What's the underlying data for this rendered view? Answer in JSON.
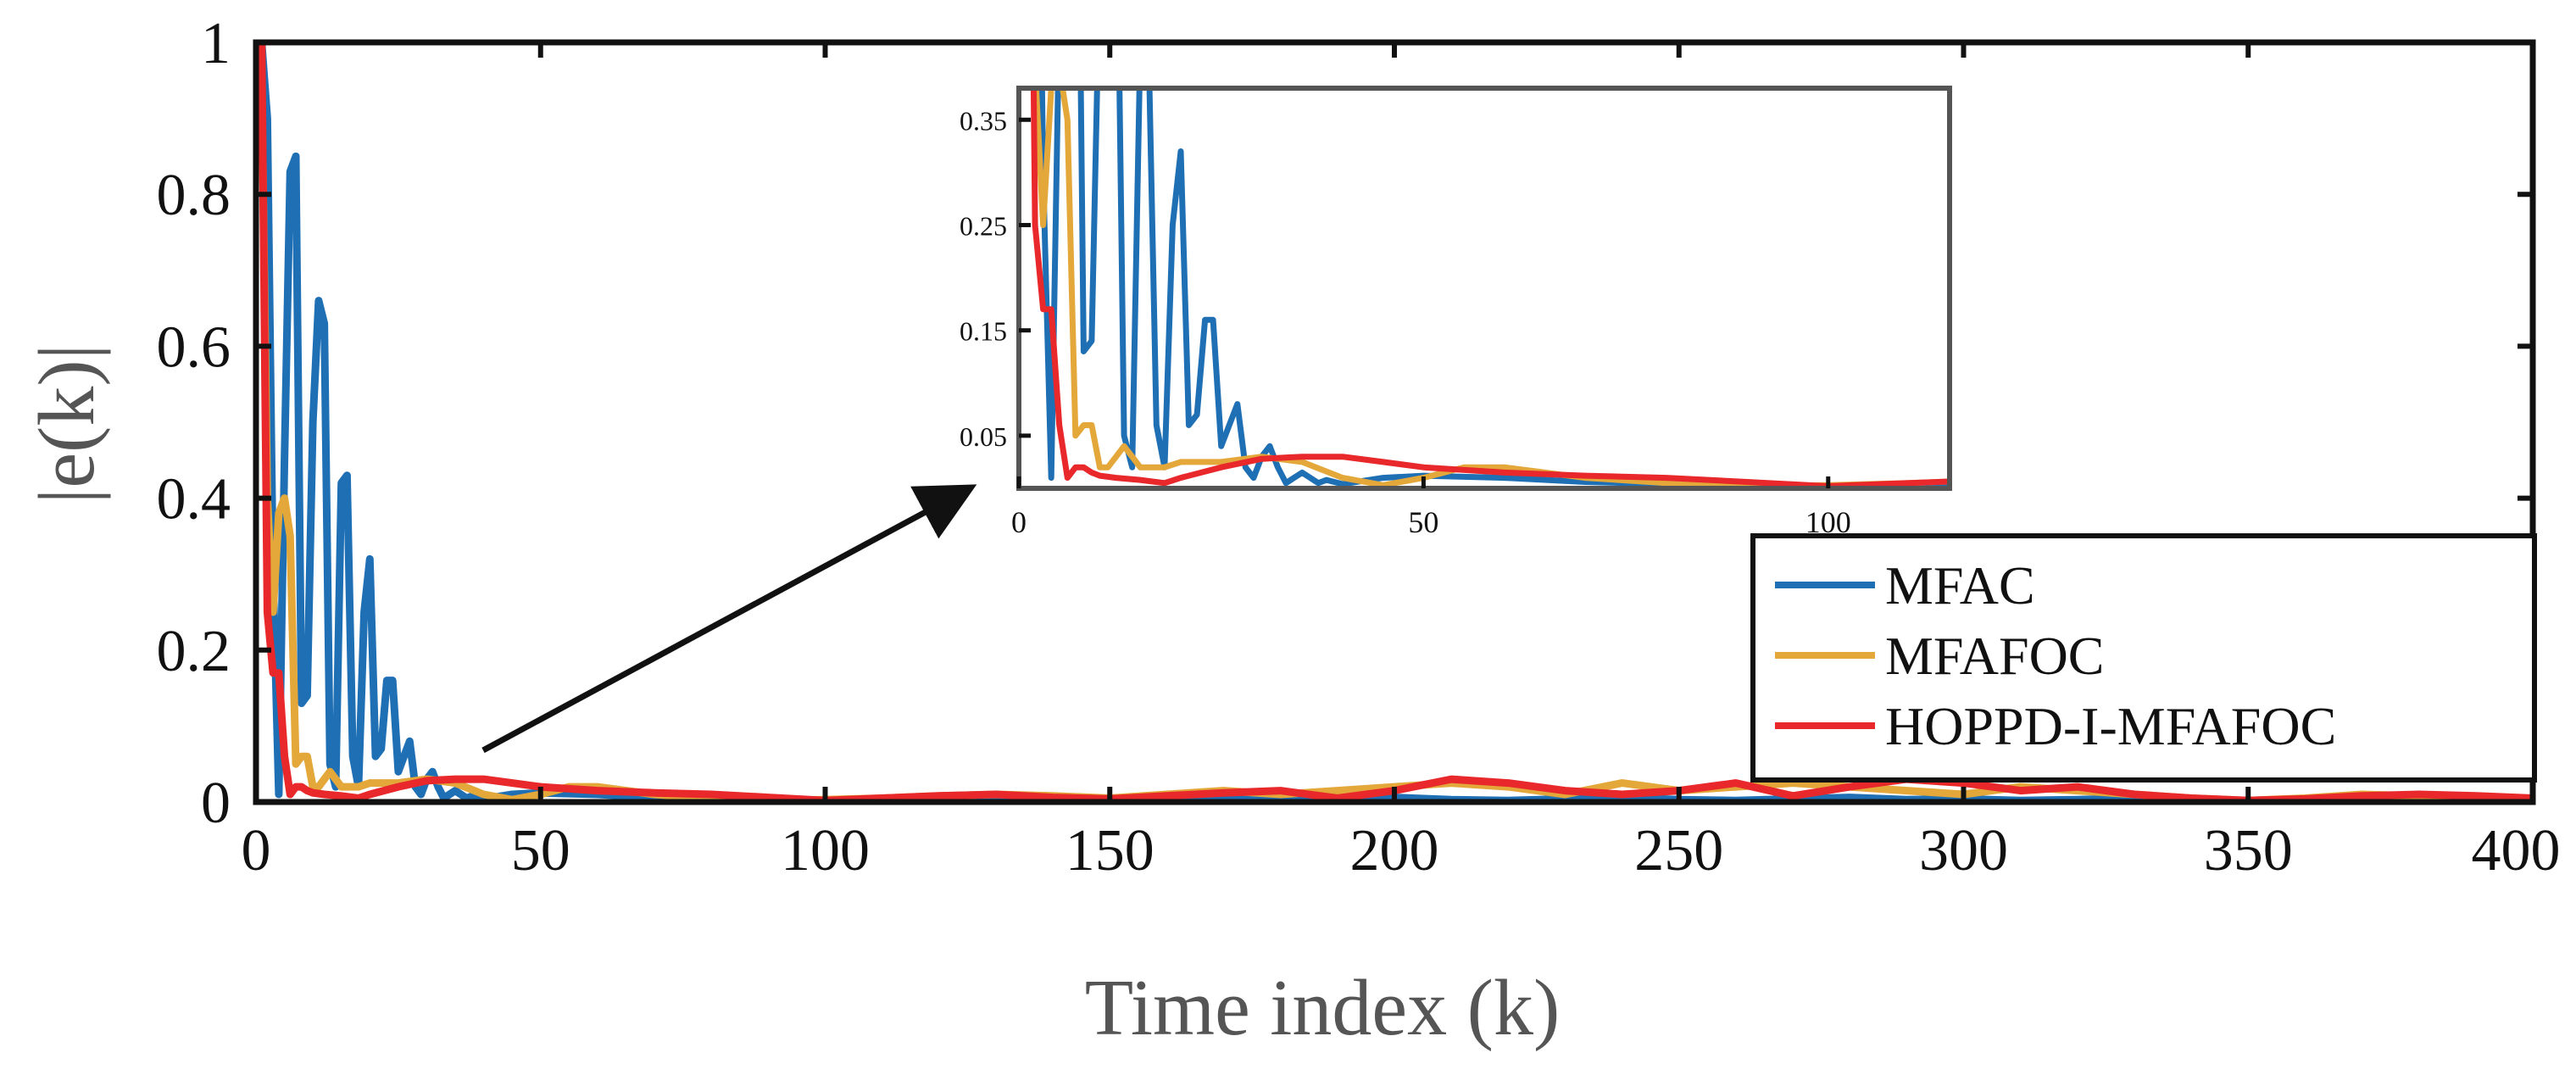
{
  "colors": {
    "mfac": "#1f6fb4",
    "mfafoc": "#e3a73a",
    "hoppd": "#e8282b",
    "axis": "#111111",
    "label": "#555555"
  },
  "chart_data": {
    "type": "line",
    "xlabel": "Time index (k)",
    "ylabel": "|e(k)|",
    "xlim": [
      0,
      400
    ],
    "ylim": [
      0,
      1
    ],
    "xticks": [
      0,
      50,
      100,
      150,
      200,
      250,
      300,
      350,
      400
    ],
    "yticks": [
      0,
      0.2,
      0.4,
      0.6,
      0.8,
      1
    ],
    "xtick_labels": [
      "0",
      "50",
      "100",
      "150",
      "200",
      "250",
      "300",
      "350",
      "400"
    ],
    "ytick_labels": [
      "0",
      "0.2",
      "0.4",
      "0.6",
      "0.8",
      "1"
    ],
    "legend": {
      "position": "lower-right",
      "entries": [
        "MFAC",
        "MFAFOC",
        "HOPPD-I-MFAFOC"
      ]
    },
    "series": [
      {
        "name": "MFAC",
        "color_key": "mfac",
        "x": [
          1,
          2,
          3,
          4,
          5,
          6,
          7,
          8,
          9,
          10,
          11,
          12,
          13,
          14,
          15,
          16,
          17,
          18,
          19,
          20,
          21,
          22,
          23,
          24,
          25,
          26,
          27,
          28,
          29,
          30,
          31,
          32,
          33,
          34,
          35,
          36,
          37,
          38,
          40,
          45,
          50,
          60,
          70,
          80,
          90,
          100,
          110,
          120,
          130,
          140,
          150,
          160,
          170,
          180,
          190,
          200,
          210,
          220,
          230,
          240,
          250,
          260,
          270,
          280,
          290,
          300,
          310,
          320,
          330,
          340,
          350,
          360,
          370,
          380,
          390,
          400
        ],
        "y": [
          1.0,
          0.9,
          0.3,
          0.01,
          0.45,
          0.83,
          0.85,
          0.13,
          0.14,
          0.5,
          0.66,
          0.63,
          0.05,
          0.02,
          0.42,
          0.43,
          0.06,
          0.02,
          0.25,
          0.32,
          0.06,
          0.07,
          0.16,
          0.16,
          0.04,
          0.06,
          0.08,
          0.02,
          0.01,
          0.03,
          0.04,
          0.02,
          0.005,
          0.01,
          0.015,
          0.01,
          0.005,
          0.008,
          0.004,
          0.01,
          0.012,
          0.01,
          0.006,
          0.004,
          0.003,
          0.002,
          0.004,
          0.003,
          0.005,
          0.003,
          0.002,
          0.004,
          0.006,
          0.003,
          0.004,
          0.006,
          0.003,
          0.002,
          0.004,
          0.006,
          0.003,
          0.002,
          0.004,
          0.006,
          0.003,
          0.004,
          0.002,
          0.003,
          0.005,
          0.003,
          0.002,
          0.004,
          0.003,
          0.002,
          0.003,
          0.002
        ]
      },
      {
        "name": "MFAFOC",
        "color_key": "mfafoc",
        "x": [
          1,
          2,
          3,
          4,
          5,
          6,
          7,
          8,
          9,
          10,
          11,
          12,
          13,
          14,
          15,
          16,
          18,
          20,
          25,
          30,
          35,
          40,
          45,
          50,
          55,
          60,
          65,
          70,
          80,
          90,
          100,
          110,
          120,
          130,
          140,
          150,
          160,
          170,
          180,
          190,
          200,
          210,
          220,
          230,
          240,
          250,
          260,
          270,
          280,
          290,
          300,
          310,
          320,
          330,
          340,
          350,
          360,
          370,
          380,
          390,
          400
        ],
        "y": [
          0.95,
          0.4,
          0.25,
          0.38,
          0.4,
          0.35,
          0.05,
          0.06,
          0.06,
          0.02,
          0.02,
          0.03,
          0.04,
          0.03,
          0.02,
          0.02,
          0.02,
          0.025,
          0.025,
          0.03,
          0.025,
          0.01,
          0.003,
          0.01,
          0.02,
          0.02,
          0.015,
          0.01,
          0.005,
          0.002,
          0.003,
          0.005,
          0.008,
          0.01,
          0.008,
          0.005,
          0.01,
          0.015,
          0.01,
          0.015,
          0.02,
          0.025,
          0.02,
          0.01,
          0.025,
          0.015,
          0.02,
          0.025,
          0.02,
          0.015,
          0.01,
          0.02,
          0.015,
          0.01,
          0.005,
          0.002,
          0.005,
          0.01,
          0.008,
          0.005,
          0.003
        ]
      },
      {
        "name": "HOPPD-I-MFAFOC",
        "color_key": "hoppd",
        "x": [
          1,
          2,
          3,
          4,
          5,
          6,
          7,
          8,
          9,
          10,
          12,
          15,
          18,
          20,
          25,
          30,
          35,
          40,
          45,
          50,
          60,
          70,
          80,
          90,
          100,
          110,
          120,
          130,
          140,
          150,
          160,
          170,
          180,
          190,
          200,
          210,
          220,
          230,
          240,
          250,
          260,
          270,
          280,
          290,
          300,
          310,
          320,
          330,
          340,
          350,
          360,
          370,
          380,
          390,
          400
        ],
        "y": [
          1.0,
          0.25,
          0.17,
          0.17,
          0.06,
          0.01,
          0.02,
          0.02,
          0.015,
          0.012,
          0.01,
          0.008,
          0.005,
          0.01,
          0.02,
          0.028,
          0.03,
          0.03,
          0.025,
          0.02,
          0.015,
          0.012,
          0.01,
          0.006,
          0.002,
          0.005,
          0.008,
          0.01,
          0.006,
          0.004,
          0.008,
          0.012,
          0.015,
          0.005,
          0.015,
          0.03,
          0.025,
          0.015,
          0.01,
          0.015,
          0.025,
          0.008,
          0.02,
          0.03,
          0.025,
          0.015,
          0.02,
          0.01,
          0.005,
          0.002,
          0.004,
          0.008,
          0.01,
          0.008,
          0.005
        ]
      }
    ],
    "inset": {
      "xlim": [
        0,
        115
      ],
      "ylim": [
        0,
        0.38
      ],
      "xticks": [
        0,
        50,
        100
      ],
      "yticks": [
        0.05,
        0.15,
        0.25,
        0.35
      ],
      "xtick_labels": [
        "0",
        "50",
        "100"
      ],
      "ytick_labels": [
        "0.05",
        "0.15",
        "0.25",
        "0.35"
      ],
      "annotation": "arrow from main plot to zoomed inset"
    }
  }
}
